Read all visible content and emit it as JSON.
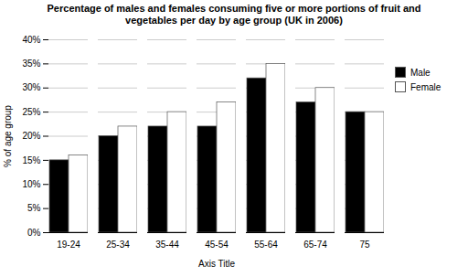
{
  "chart_data": {
    "type": "bar",
    "title": "Percentage of males and females consuming five or more portions of fruit and\nvegetables per day by age group (UK in 2006)",
    "xlabel": "Axis Title",
    "ylabel": "% of age group",
    "categories": [
      "19-24",
      "25-34",
      "35-44",
      "45-54",
      "55-64",
      "65-74",
      "75"
    ],
    "series": [
      {
        "name": "Male",
        "color": "#000000",
        "values": [
          15,
          20,
          22,
          22,
          32,
          27,
          25
        ]
      },
      {
        "name": "Female",
        "color": "#ffffff",
        "values": [
          16,
          22,
          25,
          27,
          35,
          30,
          25
        ]
      }
    ],
    "ylim": [
      0,
      40
    ],
    "yticks": [
      {
        "value": 0,
        "label": "0%"
      },
      {
        "value": 5,
        "label": "5%"
      },
      {
        "value": 10,
        "label": "10%"
      },
      {
        "value": 15,
        "label": "15%"
      },
      {
        "value": 20,
        "label": "20%"
      },
      {
        "value": 25,
        "label": "25%"
      },
      {
        "value": 30,
        "label": "30%"
      },
      {
        "value": 35,
        "label": "35%"
      },
      {
        "value": 40,
        "label": "40%"
      }
    ],
    "grid": true,
    "legend": "right"
  }
}
